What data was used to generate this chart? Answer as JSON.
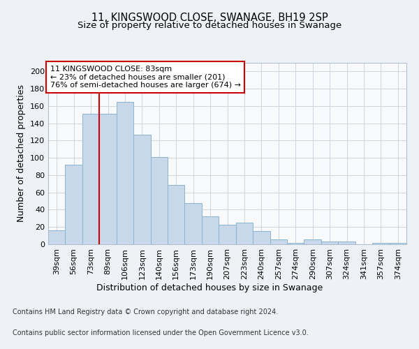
{
  "title": "11, KINGSWOOD CLOSE, SWANAGE, BH19 2SP",
  "subtitle": "Size of property relative to detached houses in Swanage",
  "xlabel": "Distribution of detached houses by size in Swanage",
  "ylabel": "Number of detached properties",
  "categories": [
    "39sqm",
    "56sqm",
    "73sqm",
    "89sqm",
    "106sqm",
    "123sqm",
    "140sqm",
    "156sqm",
    "173sqm",
    "190sqm",
    "207sqm",
    "223sqm",
    "240sqm",
    "257sqm",
    "274sqm",
    "290sqm",
    "307sqm",
    "324sqm",
    "341sqm",
    "357sqm",
    "374sqm"
  ],
  "values": [
    16,
    92,
    151,
    151,
    165,
    127,
    101,
    69,
    48,
    32,
    23,
    25,
    15,
    6,
    2,
    6,
    3,
    3,
    0,
    2,
    2
  ],
  "bar_color": "#c8d8ea",
  "bar_edge_color": "#8ab4d0",
  "red_line_x": 2.5,
  "annotation_line1": "11 KINGSWOOD CLOSE: 83sqm",
  "annotation_line2": "← 23% of detached houses are smaller (201)",
  "annotation_line3": "76% of semi-detached houses are larger (674) →",
  "annotation_box_color": "#ffffff",
  "annotation_box_edge": "#cc0000",
  "ylim": [
    0,
    210
  ],
  "yticks": [
    0,
    20,
    40,
    60,
    80,
    100,
    120,
    140,
    160,
    180,
    200
  ],
  "footer_line1": "Contains HM Land Registry data © Crown copyright and database right 2024.",
  "footer_line2": "Contains public sector information licensed under the Open Government Licence v3.0.",
  "bg_color": "#eef2f7",
  "plot_bg_color": "#f8f9fb",
  "grid_color": "#c8d0da",
  "title_fontsize": 10.5,
  "subtitle_fontsize": 9.5,
  "axis_label_fontsize": 9,
  "tick_fontsize": 8,
  "annotation_fontsize": 8,
  "footer_fontsize": 7
}
